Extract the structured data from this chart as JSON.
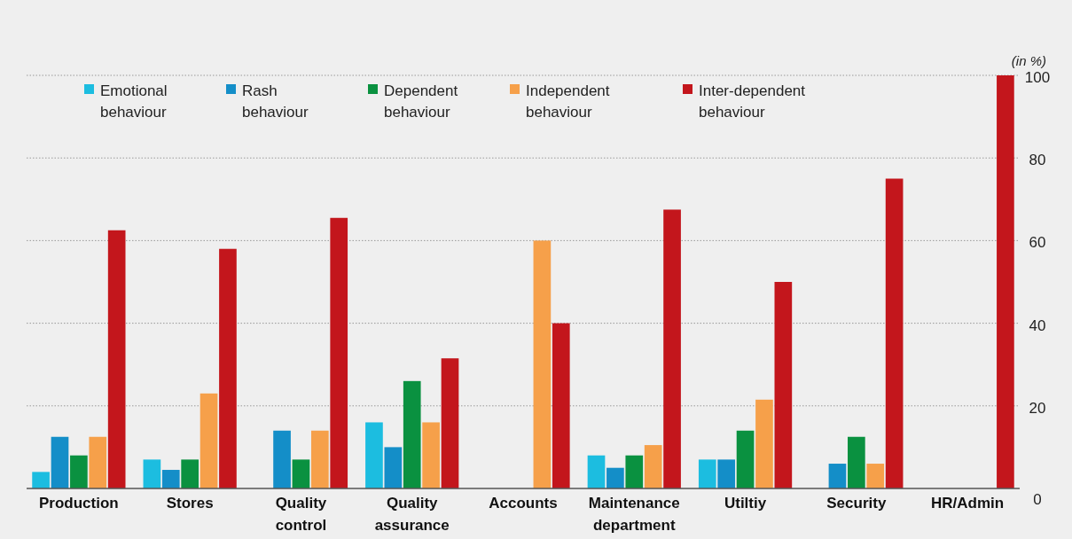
{
  "chart_data": {
    "type": "bar",
    "ylabel": "(in %)",
    "categories": [
      "Production",
      "Stores",
      "Quality control",
      "Quality assurance",
      "Accounts",
      "Maintenance department",
      "Utiltiy",
      "Security",
      "HR/Admin"
    ],
    "series": [
      {
        "name": "Emotional behaviour",
        "color": "#1cbde0",
        "values": [
          4,
          7,
          0,
          16,
          0,
          8,
          7,
          0,
          0
        ]
      },
      {
        "name": "Rash behaviour",
        "color": "#148ec8",
        "values": [
          12.5,
          4.5,
          14,
          10,
          0,
          5,
          7,
          6,
          0
        ]
      },
      {
        "name": "Dependent behaviour",
        "color": "#0a9140",
        "values": [
          8,
          7,
          7,
          26,
          0,
          8,
          14,
          12.5,
          0
        ]
      },
      {
        "name": "Independent behaviour",
        "color": "#f6a04a",
        "values": [
          12.5,
          23,
          14,
          16,
          60,
          10.5,
          21.5,
          6,
          0
        ]
      },
      {
        "name": "Inter-dependent behaviour",
        "color": "#c3161c",
        "values": [
          62.5,
          58,
          65.5,
          31.5,
          40,
          67.5,
          50,
          75,
          100
        ]
      }
    ],
    "ylim": [
      0,
      100
    ],
    "yticks": [
      0,
      20,
      40,
      60,
      80,
      100
    ],
    "grid": "y",
    "legend": "top left"
  }
}
